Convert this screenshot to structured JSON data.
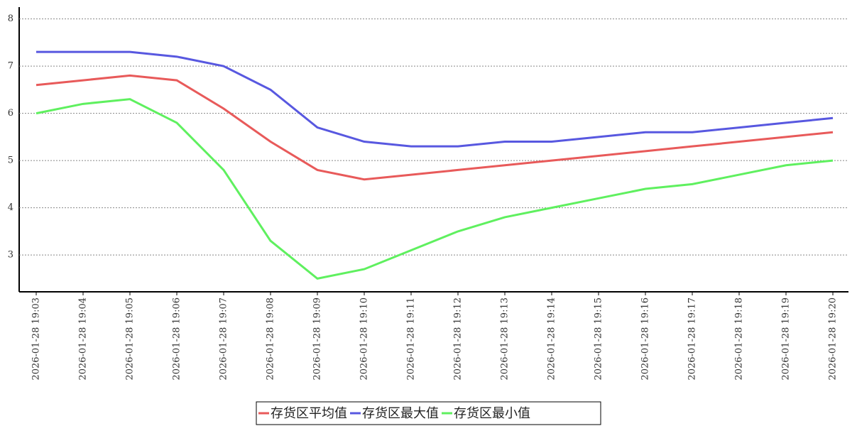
{
  "chart_data": {
    "type": "line",
    "categories": [
      "2026-01-28 19:03",
      "2026-01-28 19:04",
      "2026-01-28 19:05",
      "2026-01-28 19:06",
      "2026-01-28 19:07",
      "2026-01-28 19:08",
      "2026-01-28 19:09",
      "2026-01-28 19:10",
      "2026-01-28 19:11",
      "2026-01-28 19:12",
      "2026-01-28 19:13",
      "2026-01-28 19:14",
      "2026-01-28 19:15",
      "2026-01-28 19:16",
      "2026-01-28 19:17",
      "2026-01-28 19:18",
      "2026-01-28 19:19",
      "2026-01-28 19:20"
    ],
    "series": [
      {
        "name": "存货区平均值",
        "color": "#e85a5a",
        "values": [
          6.6,
          6.7,
          6.8,
          6.7,
          6.1,
          5.4,
          4.8,
          4.6,
          4.7,
          4.8,
          4.9,
          5.0,
          5.1,
          5.2,
          5.3,
          5.4,
          5.5,
          5.6
        ]
      },
      {
        "name": "存货区最大值",
        "color": "#5858e0",
        "values": [
          7.3,
          7.3,
          7.3,
          7.2,
          7.0,
          6.5,
          5.7,
          5.4,
          5.3,
          5.3,
          5.4,
          5.4,
          5.5,
          5.6,
          5.6,
          5.7,
          5.8,
          5.9
        ]
      },
      {
        "name": "存货区最小值",
        "color": "#5ff05f",
        "values": [
          6.0,
          6.2,
          6.3,
          5.8,
          4.8,
          3.3,
          2.5,
          2.7,
          3.1,
          3.5,
          3.8,
          4.0,
          4.2,
          4.4,
          4.5,
          4.7,
          4.9,
          5.0
        ]
      }
    ],
    "ylim": [
      2.22,
      8.25
    ],
    "yticks": [
      3,
      4,
      5,
      6,
      7,
      8
    ],
    "grid": true
  }
}
